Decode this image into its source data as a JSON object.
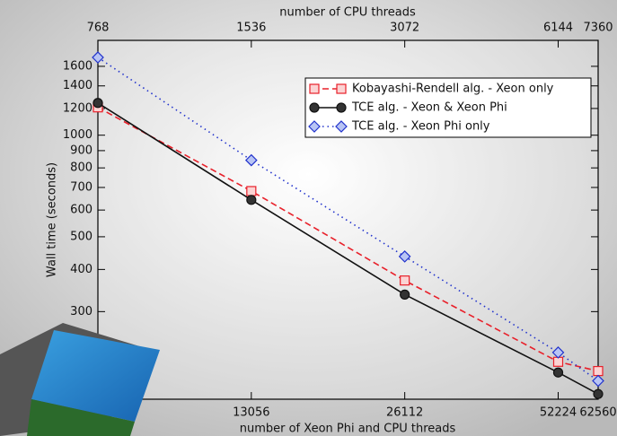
{
  "chart_data": {
    "type": "line",
    "x_label": "number of CPU threads",
    "x2_label": "number of Xeon Phi and CPU threads",
    "y_label": "Wall time (seconds)",
    "log_x": true,
    "log_y": true,
    "xlim": [
      768,
      7360
    ],
    "xticks": [
      768,
      1536,
      3072,
      6144,
      7360
    ],
    "x2lim": [
      6528,
      62560
    ],
    "x2ticks": [
      13056,
      26112,
      52224,
      62560
    ],
    "ylim": [
      165,
      1910
    ],
    "yticks": [
      300,
      400,
      500,
      600,
      700,
      800,
      900,
      1000,
      1200,
      1400,
      1600
    ],
    "legend": "upper right",
    "x": [
      768,
      1536,
      3072,
      6144,
      7360
    ],
    "series": [
      {
        "name": "Kobayashi-Rendell alg. - Xeon only",
        "color": "#e8202a",
        "marker": "square",
        "dash": "dashed",
        "values": [
          1209,
          683,
          371,
          213,
          200
        ]
      },
      {
        "name": "TCE alg. - Xeon & Xeon Phi",
        "color": "#111111",
        "marker": "circle",
        "dash": "solid",
        "values": [
          1246,
          643,
          337,
          198,
          171
        ]
      },
      {
        "name": "TCE alg. - Xeon Phi only",
        "color": "#2233cc",
        "marker": "diamond",
        "dash": "dotted",
        "values": [
          1700,
          843,
          437,
          227,
          187
        ]
      }
    ]
  }
}
